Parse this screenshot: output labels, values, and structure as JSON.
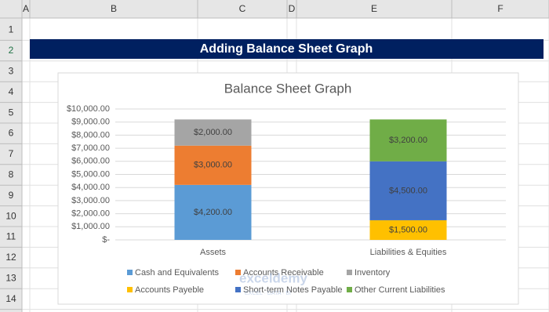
{
  "spreadsheet": {
    "columns": [
      "A",
      "B",
      "C",
      "D",
      "E",
      "F"
    ],
    "rows": [
      1,
      2,
      3,
      4,
      5,
      6,
      7,
      8,
      9,
      10,
      11,
      12,
      13,
      14
    ],
    "banner": "Adding Balance Sheet Graph",
    "watermark": "exceldemy",
    "watermark_tagline": "EXCEL · DATA · BI"
  },
  "chart_data": {
    "type": "stacked-bar",
    "title": "Balance Sheet Graph",
    "categories": [
      "Assets",
      "Liabilities & Equities"
    ],
    "series": [
      {
        "name": "Cash and Equivalents",
        "color": "#5b9bd5",
        "values": [
          4200,
          null
        ],
        "value_labels": [
          "$4,200.00",
          null
        ]
      },
      {
        "name": "Accounts Receivable",
        "color": "#ed7d31",
        "values": [
          3000,
          null
        ],
        "value_labels": [
          "$3,000.00",
          null
        ]
      },
      {
        "name": "Inventory",
        "color": "#a5a5a5",
        "values": [
          2000,
          null
        ],
        "value_labels": [
          "$2,000.00",
          null
        ]
      },
      {
        "name": "Accounts Payeble",
        "color": "#ffc000",
        "values": [
          null,
          1500
        ],
        "value_labels": [
          null,
          "$1,500.00"
        ]
      },
      {
        "name": "Short-term Notes Payable",
        "color": "#4472c4",
        "values": [
          null,
          4500
        ],
        "value_labels": [
          null,
          "$4,500.00"
        ]
      },
      {
        "name": "Other Current Liabilities",
        "color": "#70ad47",
        "values": [
          null,
          3200
        ],
        "value_labels": [
          null,
          "$3,200.00"
        ]
      }
    ],
    "ylim": [
      0,
      10000
    ],
    "yticks": [
      {
        "value": 0,
        "label": "$-"
      },
      {
        "value": 1000,
        "label": "$1,000.00"
      },
      {
        "value": 2000,
        "label": "$2,000.00"
      },
      {
        "value": 3000,
        "label": "$3,000.00"
      },
      {
        "value": 4000,
        "label": "$4,000.00"
      },
      {
        "value": 5000,
        "label": "$5,000.00"
      },
      {
        "value": 6000,
        "label": "$6,000.00"
      },
      {
        "value": 7000,
        "label": "$7,000.00"
      },
      {
        "value": 8000,
        "label": "$8,000.00"
      },
      {
        "value": 9000,
        "label": "$9,000.00"
      },
      {
        "value": 10000,
        "label": "$10,000.00"
      }
    ],
    "grid": true,
    "legend": "bottom"
  }
}
